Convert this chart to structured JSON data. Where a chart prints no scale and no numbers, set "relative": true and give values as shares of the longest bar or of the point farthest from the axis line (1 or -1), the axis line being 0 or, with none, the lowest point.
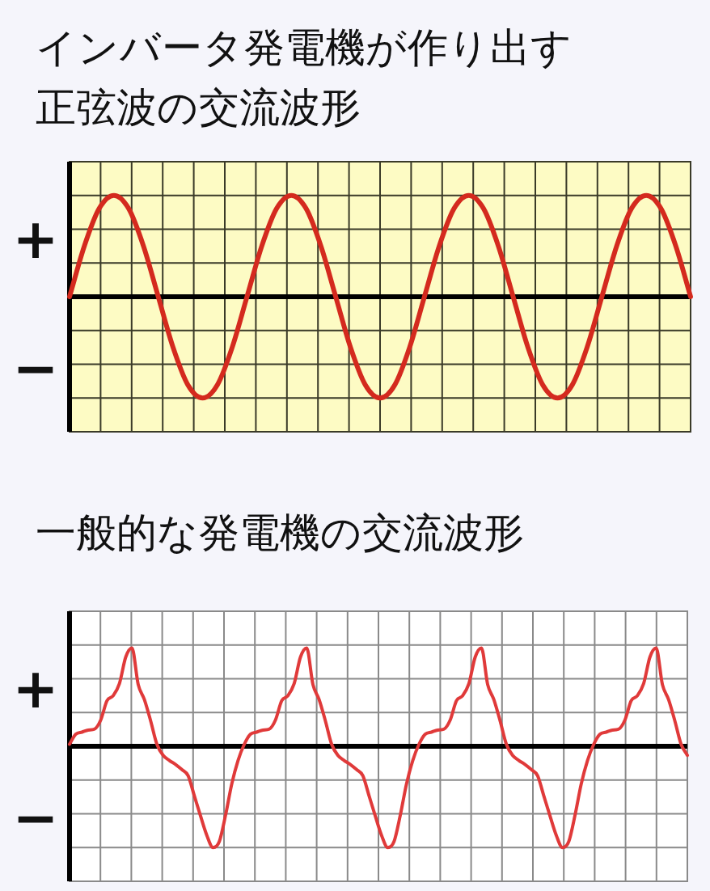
{
  "chart_data": [
    {
      "type": "line",
      "title": "インバータ発電機が作り出す",
      "subtitle": "正弦波の交流波形",
      "relative": true,
      "grid": true,
      "marker": "none",
      "line_style": "solid",
      "annotations": [
        "+",
        "−"
      ],
      "categories": [
        null,
        null,
        null,
        null,
        null,
        null,
        null,
        null,
        null,
        null,
        null,
        null,
        null,
        null,
        null,
        null,
        null,
        null,
        null,
        null,
        null,
        null,
        null,
        null,
        null,
        null,
        null,
        null,
        null,
        null,
        null,
        null,
        null,
        null,
        null,
        null,
        null,
        null,
        null,
        null,
        null,
        null,
        null
      ],
      "series": [
        {
          "color": "#d42a1e",
          "values": [
            0,
            0.5,
            0.87,
            1,
            0.87,
            0.5,
            0,
            -0.5,
            -0.87,
            -1,
            -0.87,
            -0.5,
            0,
            0.5,
            0.87,
            1,
            0.87,
            0.5,
            0,
            -0.5,
            -0.87,
            -1,
            -0.87,
            -0.5,
            0,
            0.5,
            0.87,
            1,
            0.87,
            0.5,
            0,
            -0.5,
            -0.87,
            -1,
            -0.87,
            -0.5,
            0,
            0.5,
            0.87,
            1,
            0.87,
            0.5,
            0
          ]
        }
      ]
    },
    {
      "type": "line",
      "title": "一般的な発電機の交流波形",
      "relative": true,
      "grid": true,
      "marker": "none",
      "line_style": "solid",
      "annotations": [
        "+",
        "−"
      ],
      "categories": [
        null,
        null,
        null,
        null,
        null,
        null,
        null,
        null,
        null,
        null,
        null,
        null,
        null,
        null,
        null,
        null,
        null,
        null,
        null,
        null,
        null,
        null,
        null,
        null,
        null,
        null,
        null,
        null,
        null,
        null,
        null,
        null,
        null,
        null,
        null,
        null,
        null,
        null,
        null,
        null,
        null,
        null,
        null,
        null,
        null,
        null,
        null,
        null,
        null,
        null,
        null,
        null,
        null,
        null,
        null,
        null,
        null,
        null,
        null,
        null,
        null,
        null,
        null,
        null,
        null,
        null,
        null,
        null,
        null,
        null,
        null,
        null,
        null,
        null,
        null,
        null,
        null,
        null,
        null,
        null,
        null,
        null,
        null,
        null,
        null,
        null,
        null,
        null,
        null,
        null,
        null,
        null,
        null,
        null,
        null,
        null,
        null,
        null,
        null,
        null
      ],
      "series": [
        {
          "color": "#e03a3a",
          "values": [
            0.02,
            0.12,
            0.14,
            0.16,
            0.17,
            0.26,
            0.45,
            0.5,
            0.62,
            0.88,
            0.97,
            0.61,
            0.46,
            0.25,
            0.02,
            -0.09,
            -0.14,
            -0.18,
            -0.23,
            -0.29,
            -0.49,
            -0.69,
            -0.88,
            -1,
            -0.94,
            -0.68,
            -0.37,
            -0.14,
            0.02,
            0.12,
            0.14,
            0.16,
            0.17,
            0.26,
            0.45,
            0.5,
            0.62,
            0.88,
            0.97,
            0.61,
            0.46,
            0.25,
            0.02,
            -0.09,
            -0.14,
            -0.18,
            -0.23,
            -0.29,
            -0.49,
            -0.69,
            -0.88,
            -1,
            -0.94,
            -0.68,
            -0.37,
            -0.14,
            0.02,
            0.12,
            0.14,
            0.16,
            0.17,
            0.26,
            0.45,
            0.5,
            0.62,
            0.88,
            0.97,
            0.61,
            0.46,
            0.25,
            0.02,
            -0.09,
            -0.14,
            -0.18,
            -0.23,
            -0.29,
            -0.49,
            -0.69,
            -0.88,
            -1,
            -0.94,
            -0.68,
            -0.37,
            -0.14,
            0.02,
            0.12,
            0.14,
            0.16,
            0.17,
            0.26,
            0.45,
            0.5,
            0.62,
            0.88,
            0.97,
            0.61,
            0.46,
            0.25,
            0.02,
            -0.09
          ]
        }
      ]
    }
  ]
}
